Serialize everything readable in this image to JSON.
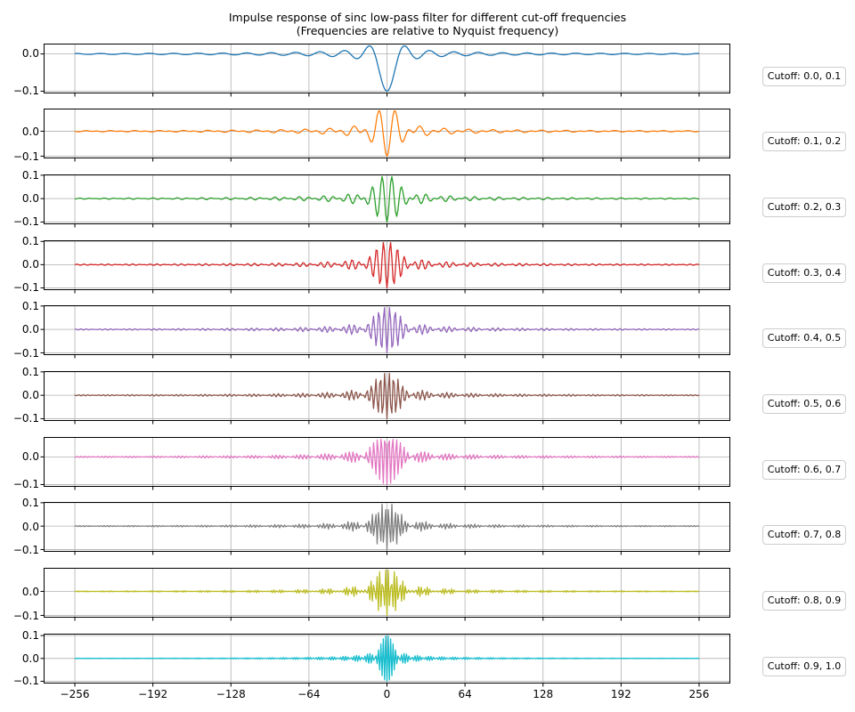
{
  "figure": {
    "title_line1": "Impulse response of sinc low-pass filter for different cut-off frequencies",
    "title_line2": "(Frequencies are relative to Nyquist frequency)",
    "background": "#ffffff",
    "spine_color": "#000000",
    "text_color": "#000000"
  },
  "chart_data": {
    "type": "line",
    "title": "Impulse response of sinc low-pass filter for different cut-off frequencies",
    "subtitle": "(Frequencies are relative to Nyquist frequency)",
    "layout": "10 vertically stacked subplots sharing the x axis; only the bottom subplot shows x tick labels; each subplot is annotated by a rounded label box to its right",
    "x": {
      "min": -256,
      "max": 256,
      "step": 1
    },
    "xlim": [
      -281.6,
      281.6
    ],
    "x_ticks": [
      -256,
      -192,
      -128,
      -64,
      0,
      64,
      128,
      192,
      256
    ],
    "y_tick_candidates": [
      -0.1,
      0,
      0.1
    ],
    "y_autoscale_margin": 0.05,
    "grid": true,
    "grid_color": "#b0b0b0",
    "line_width": 1.3,
    "impulse_formula": "h[n] = (sin(pi*f1*n) - sin(pi*f2*n)) / (pi*n), with h[0] = f1 - f2 = -0.1 (central dip visible in every subplot)",
    "subplots": [
      {
        "label": "Cutoff: 0.0, 0.1",
        "cutoff_low": 0.0,
        "cutoff_high": 0.1,
        "color": "#1f77b4"
      },
      {
        "label": "Cutoff: 0.1, 0.2",
        "cutoff_low": 0.1,
        "cutoff_high": 0.2,
        "color": "#ff7f0e"
      },
      {
        "label": "Cutoff: 0.2, 0.3",
        "cutoff_low": 0.2,
        "cutoff_high": 0.3,
        "color": "#2ca02c"
      },
      {
        "label": "Cutoff: 0.3, 0.4",
        "cutoff_low": 0.3,
        "cutoff_high": 0.4,
        "color": "#d62728"
      },
      {
        "label": "Cutoff: 0.4, 0.5",
        "cutoff_low": 0.4,
        "cutoff_high": 0.5,
        "color": "#9467bd"
      },
      {
        "label": "Cutoff: 0.5, 0.6",
        "cutoff_low": 0.5,
        "cutoff_high": 0.6,
        "color": "#8c564b"
      },
      {
        "label": "Cutoff: 0.6, 0.7",
        "cutoff_low": 0.6,
        "cutoff_high": 0.7,
        "color": "#e377c2"
      },
      {
        "label": "Cutoff: 0.7, 0.8",
        "cutoff_low": 0.7,
        "cutoff_high": 0.8,
        "color": "#7f7f7f"
      },
      {
        "label": "Cutoff: 0.8, 0.9",
        "cutoff_low": 0.8,
        "cutoff_high": 0.9,
        "color": "#bcbd22"
      },
      {
        "label": "Cutoff: 0.9, 1.0",
        "cutoff_low": 0.9,
        "cutoff_high": 1.0,
        "color": "#17becf"
      }
    ]
  }
}
